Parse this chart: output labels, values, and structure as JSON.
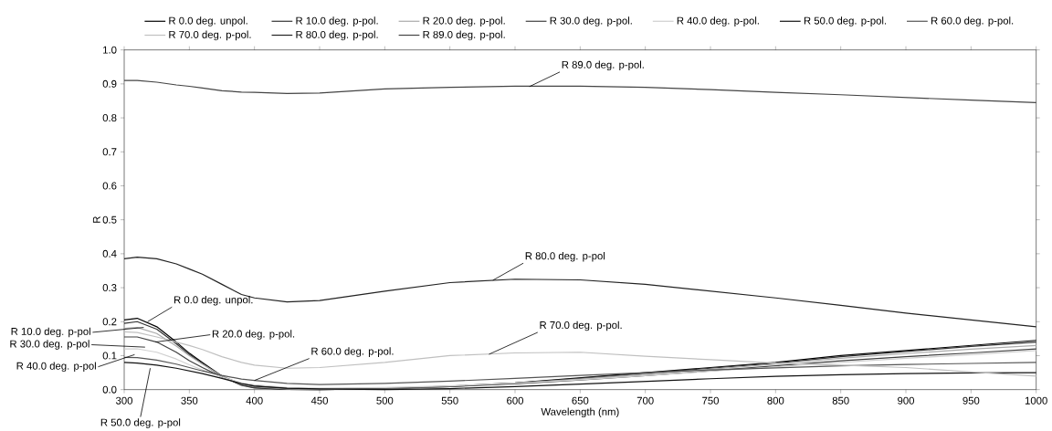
{
  "chart_data": {
    "type": "line",
    "xlabel": "Wavelength (nm)",
    "ylabel": "R",
    "x": [
      300,
      310,
      325,
      340,
      350,
      360,
      375,
      390,
      400,
      425,
      450,
      500,
      550,
      600,
      650,
      700,
      750,
      800,
      850,
      900,
      950,
      1000
    ],
    "series": [
      {
        "name": "R 0.0 deg. unpol.",
        "color": "#000000",
        "values": [
          0.205,
          0.21,
          0.185,
          0.14,
          0.107,
          0.08,
          0.04,
          0.014,
          0.006,
          0.001,
          0.0,
          0.003,
          0.01,
          0.02,
          0.035,
          0.05,
          0.065,
          0.08,
          0.1,
          0.115,
          0.13,
          0.145
        ]
      },
      {
        "name": "R 10.0 deg. p-pol.",
        "color": "#333333",
        "values": [
          0.195,
          0.2,
          0.178,
          0.135,
          0.103,
          0.077,
          0.038,
          0.013,
          0.005,
          0.001,
          0.0,
          0.003,
          0.009,
          0.019,
          0.033,
          0.048,
          0.063,
          0.078,
          0.097,
          0.112,
          0.127,
          0.14
        ]
      },
      {
        "name": "R 20.0 deg. p-pol.",
        "color": "#aaaaaa",
        "values": [
          0.18,
          0.183,
          0.165,
          0.128,
          0.1,
          0.075,
          0.04,
          0.016,
          0.008,
          0.002,
          0.001,
          0.003,
          0.009,
          0.018,
          0.031,
          0.045,
          0.06,
          0.075,
          0.092,
          0.106,
          0.119,
          0.13
        ]
      },
      {
        "name": "R 30.0 deg. p-pol.",
        "color": "#404040",
        "values": [
          0.155,
          0.155,
          0.14,
          0.11,
          0.085,
          0.065,
          0.037,
          0.018,
          0.012,
          0.004,
          0.002,
          0.004,
          0.009,
          0.017,
          0.028,
          0.041,
          0.055,
          0.07,
          0.085,
          0.097,
          0.108,
          0.12
        ]
      },
      {
        "name": "R 40.0 deg. p-pol.",
        "color": "#d0d0d0",
        "values": [
          0.12,
          0.12,
          0.11,
          0.09,
          0.073,
          0.058,
          0.037,
          0.02,
          0.014,
          0.006,
          0.004,
          0.006,
          0.011,
          0.019,
          0.029,
          0.041,
          0.054,
          0.067,
          0.08,
          0.092,
          0.103,
          0.115
        ]
      },
      {
        "name": "R 50.0 deg. p-pol.",
        "color": "#111111",
        "values": [
          0.08,
          0.078,
          0.072,
          0.063,
          0.055,
          0.047,
          0.033,
          0.018,
          0.01,
          0.004,
          0.002,
          0.0,
          0.003,
          0.009,
          0.016,
          0.024,
          0.032,
          0.039,
          0.044,
          0.047,
          0.049,
          0.05
        ]
      },
      {
        "name": "R 60.0 deg. p-pol.",
        "color": "#555555",
        "values": [
          0.095,
          0.094,
          0.087,
          0.075,
          0.065,
          0.055,
          0.042,
          0.031,
          0.027,
          0.018,
          0.015,
          0.018,
          0.025,
          0.033,
          0.042,
          0.05,
          0.058,
          0.064,
          0.07,
          0.074,
          0.077,
          0.08
        ]
      },
      {
        "name": "R 70.0 deg. p-pol.",
        "color": "#c0c0c0",
        "values": [
          0.17,
          0.168,
          0.155,
          0.14,
          0.13,
          0.118,
          0.097,
          0.08,
          0.072,
          0.063,
          0.065,
          0.08,
          0.1,
          0.108,
          0.11,
          0.098,
          0.088,
          0.078,
          0.072,
          0.065,
          0.052,
          0.04
        ]
      },
      {
        "name": "R 80.0 deg. p-pol.",
        "color": "#222222",
        "values": [
          0.385,
          0.39,
          0.385,
          0.37,
          0.355,
          0.34,
          0.31,
          0.28,
          0.27,
          0.258,
          0.262,
          0.29,
          0.315,
          0.325,
          0.323,
          0.31,
          0.29,
          0.27,
          0.248,
          0.225,
          0.205,
          0.185
        ]
      },
      {
        "name": "R 89.0 deg. p-pol.",
        "color": "#444444",
        "values": [
          0.91,
          0.91,
          0.905,
          0.897,
          0.893,
          0.888,
          0.88,
          0.876,
          0.875,
          0.872,
          0.873,
          0.885,
          0.89,
          0.893,
          0.893,
          0.89,
          0.883,
          0.875,
          0.868,
          0.86,
          0.852,
          0.845
        ]
      }
    ],
    "annotations": [
      {
        "text": "R 89.0 deg. p-pol.",
        "x": 611,
        "y": 0.892
      },
      {
        "text": "R 80.0 deg. p-pol",
        "x": 583,
        "y": 0.322
      },
      {
        "text": "R 70.0 deg. p-pol.",
        "x": 580,
        "y": 0.104
      },
      {
        "text": "R 60.0 deg. p-pol.",
        "x": 400,
        "y": 0.027
      },
      {
        "text": "R 0.0 deg. unpol.",
        "x": 318,
        "y": 0.2
      },
      {
        "text": "R 10.0 deg. p-pol",
        "x": 315,
        "y": 0.183
      },
      {
        "text": "R 20.0 deg. p-pol.",
        "x": 324,
        "y": 0.14
      },
      {
        "text": "R 30.0 deg. p-pol",
        "x": 316,
        "y": 0.125
      },
      {
        "text": "R 40.0 deg. p-pol",
        "x": 308,
        "y": 0.103
      },
      {
        "text": "R 50.0 deg. p-pol",
        "x": 320,
        "y": 0.063
      }
    ],
    "xlim": [
      300,
      1000
    ],
    "ylim": [
      0,
      1
    ],
    "xticks": [
      300,
      350,
      400,
      450,
      500,
      550,
      600,
      650,
      700,
      750,
      800,
      850,
      900,
      950,
      1000
    ],
    "yticks": [
      {
        "value": 0,
        "label": "0.0"
      },
      {
        "value": 0.1,
        "label": "0.1"
      },
      {
        "value": 0.2,
        "label": "0.2"
      },
      {
        "value": 0.3,
        "label": "0.3"
      },
      {
        "value": 0.4,
        "label": "0.4"
      },
      {
        "value": 0.5,
        "label": "0.5"
      },
      {
        "value": 0.6,
        "label": "0.6"
      },
      {
        "value": 0.7,
        "label": "0.7"
      },
      {
        "value": 0.8,
        "label": "0.8"
      },
      {
        "value": 0.9,
        "label": "0.9"
      },
      {
        "value": 1,
        "label": "1.0"
      }
    ],
    "legend": "top",
    "marker": "none",
    "line_style": "solid"
  }
}
